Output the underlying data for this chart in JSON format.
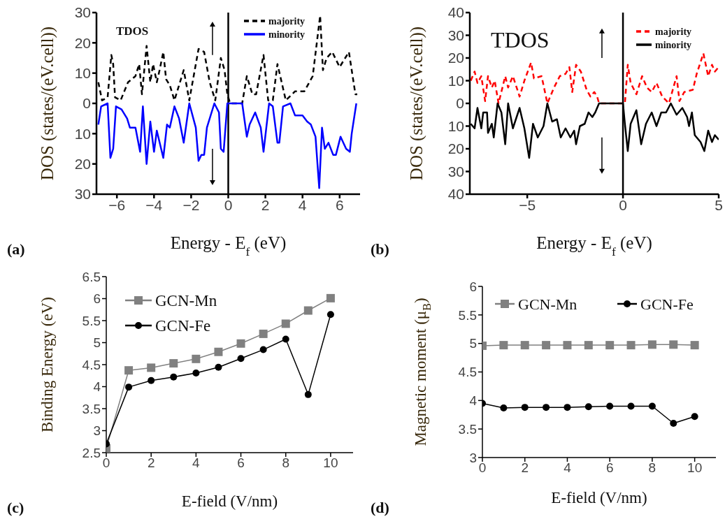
{
  "chart_data": [
    {
      "type": "line",
      "xlabel": "Energy - E$_{f}$ (eV)",
      "ylabel": "DOS (states/(eV.cell))",
      "annotations": [
        "TDOS",
        "(a)"
      ],
      "xlim": [
        -7.1,
        7.1
      ],
      "xticks": [
        -6,
        -4,
        -2,
        0,
        2,
        4,
        6
      ],
      "ylim": [
        -30,
        30
      ],
      "yticks": [
        {
          "value": -30,
          "label": "30"
        },
        {
          "value": -20,
          "label": "20"
        },
        {
          "value": -10,
          "label": "10"
        },
        0,
        10,
        20,
        30
      ],
      "legend": "top right",
      "ref_lines": [
        {
          "axis": "x",
          "value": 0,
          "color": "#000000"
        }
      ],
      "series": [
        {
          "name": "majority",
          "color": "#000000",
          "line_style": "dashed",
          "x": [
            -7.0,
            -6.8,
            -6.5,
            -6.3,
            -6.2,
            -6.1,
            -5.8,
            -5.4,
            -5.0,
            -4.8,
            -4.65,
            -4.4,
            -4.2,
            -4.05,
            -3.85,
            -3.7,
            -3.5,
            -3.35,
            -3.15,
            -2.9,
            -2.65,
            -2.4,
            -2.1,
            -1.6,
            -1.3,
            -1.0,
            -0.7,
            -0.4,
            -0.2,
            -0.05,
            0.1,
            0.75,
            1.0,
            1.3,
            1.5,
            1.9,
            2.15,
            2.4,
            2.65,
            3.1,
            3.6,
            4.1,
            4.55,
            4.95,
            5.1,
            5.3,
            5.6,
            6.0,
            6.5,
            6.85,
            6.95
          ],
          "values": [
            7,
            1,
            2,
            16,
            13,
            2,
            1,
            7,
            9,
            13,
            3,
            19,
            7,
            13,
            7,
            11,
            17,
            8,
            6,
            1,
            6,
            11,
            1,
            18,
            17,
            7,
            1,
            15,
            11,
            3,
            0,
            0,
            9,
            3,
            3,
            16,
            1,
            1,
            13,
            1,
            4,
            4,
            9,
            29,
            11,
            15,
            17,
            12,
            17,
            3,
            3
          ]
        },
        {
          "name": "minority",
          "color": "#0000ff",
          "line_style": "solid",
          "x": [
            -7.0,
            -6.85,
            -6.5,
            -6.35,
            -6.2,
            -6.05,
            -5.75,
            -5.45,
            -5.3,
            -5.0,
            -4.75,
            -4.6,
            -4.4,
            -4.2,
            -4.0,
            -3.85,
            -3.5,
            -3.3,
            -3.15,
            -2.9,
            -2.65,
            -2.4,
            -2.1,
            -1.75,
            -1.6,
            -1.45,
            -1.3,
            -1.15,
            -0.75,
            -0.5,
            -0.4,
            -0.25,
            -0.05,
            0.1,
            0.75,
            1.0,
            1.15,
            1.45,
            1.75,
            1.9,
            2.2,
            2.4,
            2.65,
            2.75,
            2.95,
            3.35,
            3.6,
            4.0,
            4.25,
            4.45,
            4.7,
            4.9,
            5.05,
            5.2,
            5.4,
            5.65,
            5.8,
            6.05,
            6.35,
            6.55,
            6.65,
            6.9
          ],
          "values": [
            -7,
            -1,
            0,
            -18,
            -15,
            -1,
            -2,
            -5,
            -8,
            -8,
            -16,
            -1,
            -20,
            -6,
            -16,
            -9,
            -18,
            -7,
            -8,
            -1,
            -5,
            -13,
            0,
            -8,
            -19,
            -17,
            -17,
            -8,
            0,
            -3,
            -15,
            -16,
            0,
            0,
            0,
            -11,
            -7,
            -3,
            -8,
            -16,
            0,
            -1,
            -13,
            -13,
            -1,
            0,
            -4,
            -4,
            -6,
            -7,
            -11,
            -28,
            -8,
            -15,
            -13,
            -17,
            -17,
            -11,
            -15,
            -16,
            -10,
            0
          ]
        }
      ]
    },
    {
      "type": "line",
      "xlabel": "Energy - E$_{f}$ (eV)",
      "ylabel": "DOS (states/(eV.cell))",
      "annotations": [
        "TDOS",
        "(b)"
      ],
      "xlim": [
        -8,
        5
      ],
      "xticks": [
        -5,
        0,
        5
      ],
      "ylim": [
        -40,
        40
      ],
      "yticks": [
        {
          "value": -40,
          "label": "40"
        },
        {
          "value": -30,
          "label": "30"
        },
        {
          "value": -20,
          "label": "20"
        },
        {
          "value": -10,
          "label": "10"
        },
        0,
        10,
        20,
        30,
        40
      ],
      "legend": "top right",
      "ref_lines": [
        {
          "axis": "x",
          "value": 0,
          "color": "#000000"
        }
      ],
      "series": [
        {
          "name": "majority",
          "color": "#ff0000",
          "line_style": "dashed",
          "x": [
            -7.95,
            -7.75,
            -7.6,
            -7.4,
            -7.2,
            -7.05,
            -6.85,
            -6.7,
            -6.5,
            -6.15,
            -6.0,
            -5.75,
            -5.4,
            -5.15,
            -4.8,
            -4.65,
            -4.25,
            -3.95,
            -3.6,
            -3.3,
            -3.0,
            -2.8,
            -2.65,
            -2.45,
            -2.2,
            -1.9,
            -1.7,
            -1.5,
            -1.35,
            -1.25,
            0.1,
            0.25,
            0.4,
            0.7,
            1.0,
            1.25,
            1.5,
            1.75,
            2.05,
            2.4,
            2.8,
            2.95,
            3.2,
            3.65,
            3.85,
            4.2,
            4.45,
            4.65,
            4.8,
            5.0
          ],
          "values": [
            10,
            14,
            9,
            12,
            1,
            12,
            7,
            10,
            0,
            12,
            7,
            12,
            3,
            10,
            18,
            11,
            12,
            0,
            7,
            12,
            13,
            16,
            5,
            17,
            14,
            6,
            3,
            5,
            3,
            0,
            0,
            17,
            9,
            4,
            12,
            7,
            5,
            9,
            3,
            0,
            12,
            1,
            5,
            6,
            13,
            22,
            12,
            17,
            14,
            16
          ]
        },
        {
          "name": "minority",
          "color": "#000000",
          "line_style": "solid",
          "x": [
            -7.95,
            -7.75,
            -7.6,
            -7.4,
            -7.3,
            -7.1,
            -7.05,
            -6.85,
            -6.75,
            -6.55,
            -6.35,
            -6.15,
            -6.0,
            -5.75,
            -5.4,
            -5.15,
            -4.9,
            -4.7,
            -4.45,
            -4.15,
            -3.95,
            -3.7,
            -3.45,
            -3.25,
            -3.0,
            -2.75,
            -2.55,
            -2.45,
            -2.25,
            -2.0,
            -1.8,
            -1.6,
            -1.45,
            -1.25,
            0,
            0.1,
            0.25,
            0.4,
            0.7,
            0.95,
            1.2,
            1.5,
            1.75,
            2.0,
            2.25,
            2.5,
            2.8,
            3.1,
            3.35,
            3.45,
            3.6,
            3.75,
            4.05,
            4.25,
            4.45,
            4.65,
            4.8,
            5.0
          ],
          "values": [
            -9,
            -11,
            -2,
            -11,
            -4,
            -4,
            -13,
            -9,
            -15,
            0,
            -4,
            -18,
            0,
            -11,
            -2,
            -11,
            -24,
            -9,
            -15,
            -10,
            0,
            -8,
            -7,
            -15,
            -11,
            -15,
            -12,
            -18,
            -10,
            -9,
            -4,
            -6,
            -4,
            0,
            0,
            -9,
            -21,
            -9,
            -3,
            -18,
            -9,
            -4,
            -10,
            -4,
            -4,
            0,
            -5,
            -2,
            -6,
            -10,
            -4,
            -14,
            -17,
            -21,
            -12,
            -17,
            -14,
            -16
          ]
        }
      ]
    },
    {
      "type": "line",
      "xlabel": "E-field (V/nm)",
      "ylabel": "Binding Energy (eV)",
      "annotations": [
        "(c)"
      ],
      "xlim": [
        0,
        11
      ],
      "xticks": [
        0,
        2,
        4,
        6,
        8,
        10
      ],
      "ylim": [
        2.5,
        6.5
      ],
      "yticks": [
        2.5,
        3,
        3.5,
        4,
        4.5,
        5,
        5.5,
        6,
        6.5
      ],
      "legend": "top left",
      "x": [
        0,
        1,
        2,
        3,
        4,
        5,
        6,
        7,
        8,
        9,
        10
      ],
      "series": [
        {
          "name": "GCN-Mn",
          "color": "#808080",
          "marker": "square",
          "values": [
            2.6,
            4.37,
            4.43,
            4.53,
            4.63,
            4.79,
            4.98,
            5.2,
            5.43,
            5.73,
            6.01
          ]
        },
        {
          "name": "GCN-Fe",
          "color": "#000000",
          "marker": "circle",
          "values": [
            2.7,
            3.99,
            4.14,
            4.22,
            4.31,
            4.44,
            4.64,
            4.84,
            5.08,
            3.82,
            5.64
          ]
        }
      ]
    },
    {
      "type": "line",
      "xlabel": "E-field (V/nm)",
      "ylabel": "Magnetic moment (μ$_{B}$)",
      "annotations": [
        "(d)"
      ],
      "xlim": [
        0,
        11
      ],
      "xticks": [
        0,
        2,
        4,
        6,
        8,
        10
      ],
      "ylim": [
        3,
        6
      ],
      "yticks": [
        3,
        3.5,
        4,
        4.5,
        5,
        5.5,
        6
      ],
      "legend": "top",
      "x": [
        0,
        1,
        2,
        3,
        4,
        5,
        6,
        7,
        8,
        9,
        10
      ],
      "series": [
        {
          "name": "GCN-Mn",
          "color": "#808080",
          "marker": "square",
          "values": [
            4.96,
            4.97,
            4.97,
            4.97,
            4.97,
            4.97,
            4.97,
            4.97,
            4.98,
            4.98,
            4.97
          ]
        },
        {
          "name": "GCN-Fe",
          "color": "#000000",
          "marker": "circle",
          "values": [
            3.95,
            3.87,
            3.88,
            3.88,
            3.88,
            3.89,
            3.9,
            3.9,
            3.9,
            3.6,
            3.72
          ]
        }
      ]
    }
  ]
}
